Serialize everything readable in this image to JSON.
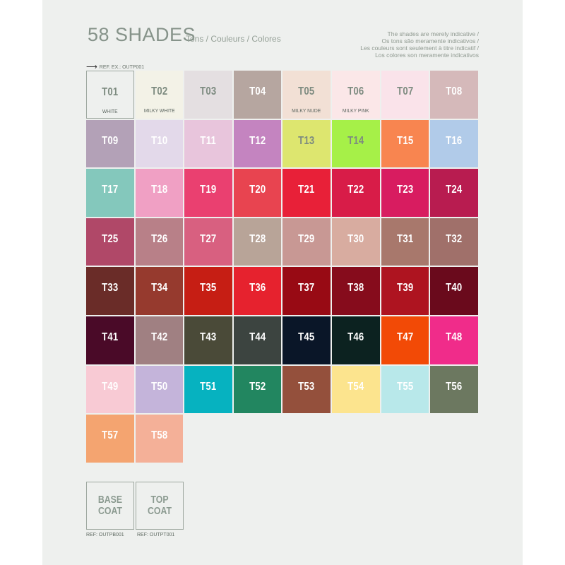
{
  "header": {
    "title": "58 SHADES",
    "subtitle": "Tons / Couleurs / Colores",
    "disclaimer": [
      "The shades are merely indicative /",
      "Os tons são meramente indicativos /",
      "Les couleurs sont seulement à titre indicatif /",
      "Los colores son meramente indicativos"
    ],
    "ref_example": "REF. EX.: OUTP001",
    "arrow_icon": "right-arrow-icon"
  },
  "label_colors": {
    "light": "#7d8b80",
    "dark": "#ffffff"
  },
  "shades": [
    {
      "code": "T01",
      "name": "WHITE",
      "color": "#eef0ee",
      "text": "light",
      "border": true
    },
    {
      "code": "T02",
      "name": "MILKY WHITE",
      "color": "#f3f2e7",
      "text": "light"
    },
    {
      "code": "T03",
      "color": "#e4dfe1",
      "text": "light"
    },
    {
      "code": "T04",
      "color": "#b6a6a0",
      "text": "dark"
    },
    {
      "code": "T05",
      "name": "MILKY NUDE",
      "color": "#f2e0d5",
      "text": "light"
    },
    {
      "code": "T06",
      "name": "MILKY PINK",
      "color": "#fbe7e8",
      "text": "light"
    },
    {
      "code": "T07",
      "color": "#fae3ea",
      "text": "light"
    },
    {
      "code": "T08",
      "color": "#d5b9ba",
      "text": "dark"
    },
    {
      "code": "T09",
      "color": "#b3a1b7",
      "text": "dark"
    },
    {
      "code": "T10",
      "color": "#e3d9ea",
      "text": "dark"
    },
    {
      "code": "T11",
      "color": "#e8c5dc",
      "text": "dark"
    },
    {
      "code": "T12",
      "color": "#c484c0",
      "text": "dark"
    },
    {
      "code": "T13",
      "color": "#dde66f",
      "text": "light"
    },
    {
      "code": "T14",
      "color": "#a6f048",
      "text": "light"
    },
    {
      "code": "T15",
      "color": "#f88550",
      "text": "dark"
    },
    {
      "code": "T16",
      "color": "#b1cbe9",
      "text": "dark"
    },
    {
      "code": "T17",
      "color": "#84c8bc",
      "text": "dark"
    },
    {
      "code": "T18",
      "color": "#f0a0c4",
      "text": "dark"
    },
    {
      "code": "T19",
      "color": "#ea4070",
      "text": "dark"
    },
    {
      "code": "T20",
      "color": "#e84450",
      "text": "dark"
    },
    {
      "code": "T21",
      "color": "#e82038",
      "text": "dark"
    },
    {
      "code": "T22",
      "color": "#d81c48",
      "text": "dark"
    },
    {
      "code": "T23",
      "color": "#d81c60",
      "text": "dark"
    },
    {
      "code": "T24",
      "color": "#b81c50",
      "text": "dark"
    },
    {
      "code": "T25",
      "color": "#b04868",
      "text": "dark"
    },
    {
      "code": "T26",
      "color": "#b88088",
      "text": "dark"
    },
    {
      "code": "T27",
      "color": "#d86080",
      "text": "dark"
    },
    {
      "code": "T28",
      "color": "#b8a498",
      "text": "dark"
    },
    {
      "code": "T29",
      "color": "#c89894",
      "text": "dark"
    },
    {
      "code": "T30",
      "color": "#d8aca0",
      "text": "dark"
    },
    {
      "code": "T31",
      "color": "#a8786c",
      "text": "dark"
    },
    {
      "code": "T32",
      "color": "#a0706a",
      "text": "dark"
    },
    {
      "code": "T33",
      "color": "#6a2c28",
      "text": "dark"
    },
    {
      "code": "T34",
      "color": "#963a2e",
      "text": "dark"
    },
    {
      "code": "T35",
      "color": "#c61e14",
      "text": "dark"
    },
    {
      "code": "T36",
      "color": "#e6222e",
      "text": "dark"
    },
    {
      "code": "T37",
      "color": "#980a14",
      "text": "dark"
    },
    {
      "code": "T38",
      "color": "#860c1c",
      "text": "dark"
    },
    {
      "code": "T39",
      "color": "#ae1420",
      "text": "dark"
    },
    {
      "code": "T40",
      "color": "#6a0a1c",
      "text": "dark"
    },
    {
      "code": "T41",
      "color": "#4a0a28",
      "text": "dark"
    },
    {
      "code": "T42",
      "color": "#a08082",
      "text": "dark"
    },
    {
      "code": "T43",
      "color": "#4a4a38",
      "text": "dark"
    },
    {
      "code": "T44",
      "color": "#3c4440",
      "text": "dark"
    },
    {
      "code": "T45",
      "color": "#0a1628",
      "text": "dark"
    },
    {
      "code": "T46",
      "color": "#0c2220",
      "text": "dark"
    },
    {
      "code": "T47",
      "color": "#f24a06",
      "text": "dark"
    },
    {
      "code": "T48",
      "color": "#f02c8a",
      "text": "dark"
    },
    {
      "code": "T49",
      "color": "#f8cad4",
      "text": "dark"
    },
    {
      "code": "T50",
      "color": "#c4b4da",
      "text": "dark"
    },
    {
      "code": "T51",
      "color": "#06b2c0",
      "text": "dark"
    },
    {
      "code": "T52",
      "color": "#228660",
      "text": "dark"
    },
    {
      "code": "T53",
      "color": "#94503c",
      "text": "dark"
    },
    {
      "code": "T54",
      "color": "#fce48e",
      "text": "dark"
    },
    {
      "code": "T55",
      "color": "#b8e8ea",
      "text": "dark"
    },
    {
      "code": "T56",
      "color": "#6c7860",
      "text": "dark"
    },
    {
      "code": "T57",
      "color": "#f4a470",
      "text": "dark"
    },
    {
      "code": "T58",
      "color": "#f4b098",
      "text": "dark"
    }
  ],
  "coats": [
    {
      "label": "BASE COAT",
      "ref": "REF: OUTPB001"
    },
    {
      "label": "TOP COAT",
      "ref": "REF: OUTPT001"
    }
  ]
}
